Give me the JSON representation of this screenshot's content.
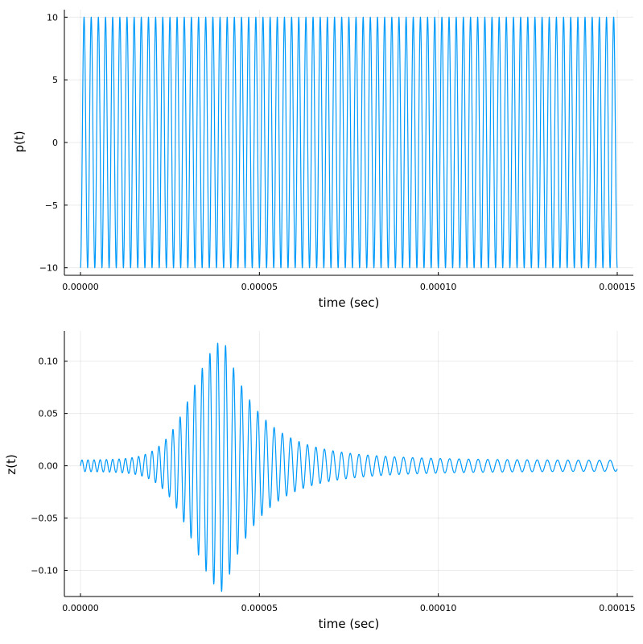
{
  "chart_data": [
    {
      "type": "line",
      "title": "",
      "xlabel": "time (sec)",
      "ylabel": "p(t)",
      "xlim": [
        -4.5e-06,
        0.0001545
      ],
      "ylim": [
        -10.6,
        10.6
      ],
      "x_ticks": [
        0,
        5e-05,
        0.0001,
        0.00015
      ],
      "x_tick_labels": [
        "0.00000",
        "0.00005",
        "0.00010",
        "0.00015"
      ],
      "y_ticks": [
        -10,
        -5,
        0,
        5,
        10
      ],
      "y_tick_labels": [
        "−10",
        "−5",
        "0",
        "5",
        "10"
      ],
      "grid": true,
      "legend": "none",
      "color": "#009AFA",
      "series": [
        {
          "function": "-10*cos(2*pi*f*t)",
          "amplitude": 10,
          "frequency_hz": 500000,
          "t_start": 0,
          "t_end": 0.00015
        }
      ]
    },
    {
      "type": "line",
      "title": "",
      "xlabel": "time (sec)",
      "ylabel": "z(t)",
      "xlim": [
        -4.5e-06,
        0.0001545
      ],
      "ylim": [
        -0.125,
        0.129
      ],
      "x_ticks": [
        0,
        5e-05,
        0.0001,
        0.00015
      ],
      "x_tick_labels": [
        "0.00000",
        "0.00005",
        "0.00010",
        "0.00015"
      ],
      "y_ticks": [
        -0.1,
        -0.05,
        0,
        0.05,
        0.1
      ],
      "y_tick_labels": [
        "−0.10",
        "−0.05",
        "0.00",
        "0.05",
        "0.10"
      ],
      "grid": true,
      "legend": "none",
      "color": "#009AFA",
      "series": [
        {
          "function": "chirped oscillation with resonance peak",
          "peak_time": 4e-05,
          "peak_value": 0.121,
          "min_value": -0.119,
          "initial_amplitude": 0.005,
          "final_amplitude": 0.005,
          "frequency_start_hz": 600000,
          "frequency_peak_hz": 450000,
          "frequency_end_hz": 330000,
          "t_start": 0,
          "t_end": 0.00015
        }
      ]
    }
  ]
}
